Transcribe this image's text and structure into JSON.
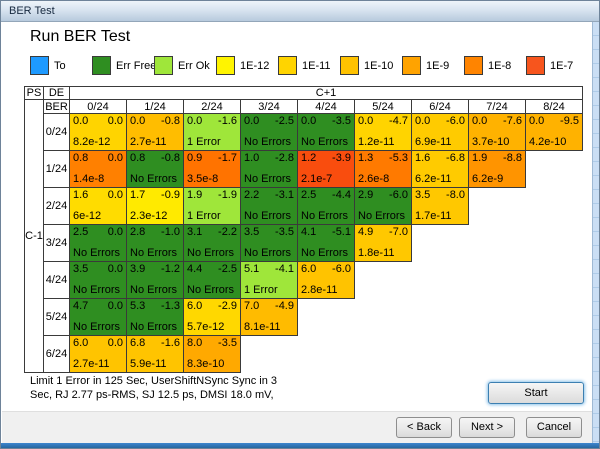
{
  "window": {
    "title": "BER Test"
  },
  "heading": "Run BER Test",
  "legend": [
    {
      "label": "To",
      "color": "#1e9aff"
    },
    {
      "label": "Err Free",
      "color": "#2f8e21"
    },
    {
      "label": "Err Ok",
      "color": "#9fe63a"
    },
    {
      "label": "1E-12",
      "color": "#fff400"
    },
    {
      "label": "1E-11",
      "color": "#ffd400"
    },
    {
      "label": "1E-10",
      "color": "#ffc200"
    },
    {
      "label": "1E-9",
      "color": "#ffa300"
    },
    {
      "label": "1E-8",
      "color": "#ff8400"
    },
    {
      "label": "1E-7",
      "color": "#f7551d"
    }
  ],
  "table": {
    "corner_ps": "PS",
    "corner_de": "DE",
    "corner_ber": "BER",
    "col_group": "C+1",
    "row_group": "C-1",
    "col_headers": [
      "0/24",
      "1/24",
      "2/24",
      "3/24",
      "4/24",
      "5/24",
      "6/24",
      "7/24",
      "8/24"
    ],
    "row_headers": [
      "0/24",
      "1/24",
      "2/24",
      "3/24",
      "4/24",
      "5/24",
      "6/24"
    ],
    "rows": [
      [
        {
          "tl": "0.0",
          "tr": "0.0",
          "ber": "8.2e-12",
          "c": "#ffd400"
        },
        {
          "tl": "0.0",
          "tr": "-0.8",
          "ber": "2.7e-11",
          "c": "#ffbd00"
        },
        {
          "tl": "0.0",
          "tr": "-1.6",
          "ber": "1 Error",
          "c": "#9fe63a"
        },
        {
          "tl": "0.0",
          "tr": "-2.5",
          "ber": "No Errors",
          "c": "#2f8e21"
        },
        {
          "tl": "0.0",
          "tr": "-3.5",
          "ber": "No Errors",
          "c": "#2f8e21"
        },
        {
          "tl": "0.0",
          "tr": "-4.7",
          "ber": "1.2e-11",
          "c": "#ffd400"
        },
        {
          "tl": "0.0",
          "tr": "-6.0",
          "ber": "6.9e-11",
          "c": "#ffcb00"
        },
        {
          "tl": "0.0",
          "tr": "-7.6",
          "ber": "3.7e-10",
          "c": "#ffb200"
        },
        {
          "tl": "0.0",
          "tr": "-9.5",
          "ber": "4.2e-10",
          "c": "#ffb200"
        }
      ],
      [
        {
          "tl": "0.8",
          "tr": "0.0",
          "ber": "1.4e-8",
          "c": "#ff8000"
        },
        {
          "tl": "0.8",
          "tr": "-0.8",
          "ber": "No Errors",
          "c": "#2f8e21"
        },
        {
          "tl": "0.9",
          "tr": "-1.7",
          "ber": "3.5e-8",
          "c": "#ff7300"
        },
        {
          "tl": "1.0",
          "tr": "-2.8",
          "ber": "No Errors",
          "c": "#2f8e21"
        },
        {
          "tl": "1.2",
          "tr": "-3.9",
          "ber": "2.1e-7",
          "c": "#f94d0e"
        },
        {
          "tl": "1.3",
          "tr": "-5.3",
          "ber": "2.6e-8",
          "c": "#ff7a00"
        },
        {
          "tl": "1.6",
          "tr": "-6.8",
          "ber": "6.2e-11",
          "c": "#ffcb00"
        },
        {
          "tl": "1.9",
          "tr": "-8.8",
          "ber": "6.2e-9",
          "c": "#ff9400"
        }
      ],
      [
        {
          "tl": "1.6",
          "tr": "0.0",
          "ber": "6e-12",
          "c": "#ffdc00"
        },
        {
          "tl": "1.7",
          "tr": "-0.9",
          "ber": "2.3e-12",
          "c": "#ffea00"
        },
        {
          "tl": "1.9",
          "tr": "-1.9",
          "ber": "1 Error",
          "c": "#9fe63a"
        },
        {
          "tl": "2.2",
          "tr": "-3.1",
          "ber": "No Errors",
          "c": "#2f8e21"
        },
        {
          "tl": "2.5",
          "tr": "-4.4",
          "ber": "No Errors",
          "c": "#2f8e21"
        },
        {
          "tl": "2.9",
          "tr": "-6.0",
          "ber": "No Errors",
          "c": "#2f8e21"
        },
        {
          "tl": "3.5",
          "tr": "-8.0",
          "ber": "1.7e-11",
          "c": "#ffc800"
        }
      ],
      [
        {
          "tl": "2.5",
          "tr": "0.0",
          "ber": "No Errors",
          "c": "#2f8e21"
        },
        {
          "tl": "2.8",
          "tr": "-1.0",
          "ber": "No Errors",
          "c": "#2f8e21"
        },
        {
          "tl": "3.1",
          "tr": "-2.2",
          "ber": "No Errors",
          "c": "#2f8e21"
        },
        {
          "tl": "3.5",
          "tr": "-3.5",
          "ber": "No Errors",
          "c": "#2f8e21"
        },
        {
          "tl": "4.1",
          "tr": "-5.1",
          "ber": "No Errors",
          "c": "#2f8e21"
        },
        {
          "tl": "4.9",
          "tr": "-7.0",
          "ber": "1.8e-11",
          "c": "#ffc800"
        }
      ],
      [
        {
          "tl": "3.5",
          "tr": "0.0",
          "ber": "No Errors",
          "c": "#2f8e21"
        },
        {
          "tl": "3.9",
          "tr": "-1.2",
          "ber": "No Errors",
          "c": "#2f8e21"
        },
        {
          "tl": "4.4",
          "tr": "-2.5",
          "ber": "No Errors",
          "c": "#2f8e21"
        },
        {
          "tl": "5.1",
          "tr": "-4.1",
          "ber": "1 Error",
          "c": "#9fe63a"
        },
        {
          "tl": "6.0",
          "tr": "-6.0",
          "ber": "2.8e-11",
          "c": "#ffc300"
        }
      ],
      [
        {
          "tl": "4.7",
          "tr": "0.0",
          "ber": "No Errors",
          "c": "#2f8e21"
        },
        {
          "tl": "5.3",
          "tr": "-1.3",
          "ber": "No Errors",
          "c": "#2f8e21"
        },
        {
          "tl": "6.0",
          "tr": "-2.9",
          "ber": "5.7e-12",
          "c": "#ffd800"
        },
        {
          "tl": "7.0",
          "tr": "-4.9",
          "ber": "8.1e-11",
          "c": "#ffbb00"
        }
      ],
      [
        {
          "tl": "6.0",
          "tr": "0.0",
          "ber": "2.7e-11",
          "c": "#ffc400"
        },
        {
          "tl": "6.8",
          "tr": "-1.6",
          "ber": "5.9e-11",
          "c": "#ffc400"
        },
        {
          "tl": "8.0",
          "tr": "-3.5",
          "ber": "8.3e-10",
          "c": "#ffa900"
        }
      ]
    ]
  },
  "note": {
    "line1": "Limit 1 Error in 125 Sec, UserShiftNSync Sync in 3",
    "line2": "Sec, RJ 2.77 ps-RMS, SJ 12.5 ps, DMSI 18.0 mV,"
  },
  "buttons": {
    "start": "Start",
    "back": "< Back",
    "next": "Next >",
    "cancel": "Cancel"
  }
}
